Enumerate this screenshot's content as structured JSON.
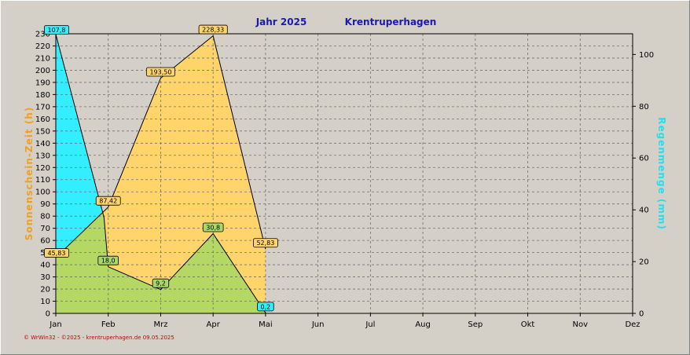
{
  "chart_data": {
    "type": "area",
    "title": "Jahr  2025",
    "location": "Krentruperhagen",
    "categories": [
      "Jan",
      "Feb",
      "Mrz",
      "Apr",
      "Mai",
      "Jun",
      "Jul",
      "Aug",
      "Sep",
      "Okt",
      "Nov",
      "Dez"
    ],
    "ylabel_left": "Sonnenschein-Zeit  (h)",
    "ylabel_right": "Regenmenge  (mm)",
    "ylim_left": [
      0,
      230
    ],
    "ylim_right": [
      0,
      108
    ],
    "left_ticks": [
      0,
      10,
      20,
      30,
      40,
      50,
      60,
      70,
      80,
      90,
      100,
      110,
      120,
      130,
      140,
      150,
      160,
      170,
      180,
      190,
      200,
      210,
      220,
      230
    ],
    "right_ticks": [
      0,
      20,
      40,
      60,
      80,
      100
    ],
    "grid": true,
    "series": [
      {
        "axis": "left",
        "x": [
          0,
          1,
          2,
          3,
          4
        ],
        "values": [
          45.83,
          87.42,
          193.5,
          228.33,
          52.83
        ],
        "labels": [
          "45,83",
          "87,42",
          "193,50",
          "228,33",
          "52,83"
        ],
        "color": "#ffd46b",
        "label_bg": "#ffd46b"
      },
      {
        "axis": "right",
        "x": [
          0,
          0.92,
          1,
          2,
          3,
          4
        ],
        "values": [
          107.8,
          37,
          18.0,
          9.2,
          30.8,
          0.2
        ],
        "labeled_points": [
          0,
          2,
          3,
          4,
          5
        ],
        "labels": [
          "107,8",
          "18,0",
          "9,2",
          "30,8",
          "0,2"
        ],
        "color": "#33eeff",
        "label_bg": [
          "#33eeff",
          "#a8d86a",
          "#a8d86a",
          "#a8d86a",
          "#33eeff"
        ]
      }
    ],
    "overlap_color": "#b5d763"
  },
  "footer": "© WrWin32 - ©2025 - krentruperhagen.de  09.05.2025",
  "colors": {
    "title": "#1a1ab0",
    "left_axis_label": "#f0a020",
    "right_axis_label": "#20e0f0",
    "footer": "#cc0000"
  }
}
